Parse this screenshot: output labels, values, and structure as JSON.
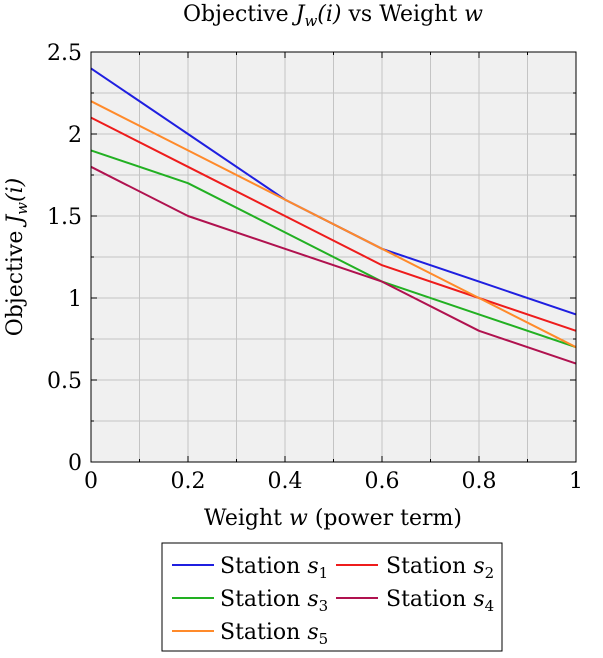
{
  "chart_data": {
    "type": "line",
    "title": {
      "prefix": "Objective ",
      "sym": "J",
      "sub": "w",
      "arg": "(i)",
      "suffix": " vs Weight ",
      "var": "w"
    },
    "xlabel": {
      "prefix": "Weight ",
      "var": "w",
      "suffix": " (power term)"
    },
    "ylabel": {
      "prefix": "Objective ",
      "sym": "J",
      "sub": "w",
      "arg": "(i)"
    },
    "xlim": [
      0,
      1
    ],
    "ylim": [
      0,
      2.5
    ],
    "xticks": [
      0,
      0.2,
      0.4,
      0.6,
      0.8,
      1
    ],
    "xtick_labels": [
      "0",
      "0.2",
      "0.4",
      "0.6",
      "0.8",
      "1"
    ],
    "yticks": [
      0,
      0.5,
      1,
      1.5,
      2,
      2.5
    ],
    "ytick_labels": [
      "0",
      "0.5",
      "1",
      "1.5",
      "2",
      "2.5"
    ],
    "grid": true,
    "legend_position": "bottom-center",
    "x": [
      0,
      0.2,
      0.4,
      0.6,
      0.8,
      1
    ],
    "series": [
      {
        "name": "Station s1",
        "label": "Station ",
        "sym": "s",
        "sub": "1",
        "color": "#1f1fe0",
        "values": [
          2.4,
          2.0,
          1.6,
          1.3,
          1.1,
          0.9
        ]
      },
      {
        "name": "Station s2",
        "label": "Station ",
        "sym": "s",
        "sub": "2",
        "color": "#ee1c1c",
        "values": [
          2.1,
          1.8,
          1.5,
          1.2,
          1.0,
          0.8
        ]
      },
      {
        "name": "Station s3",
        "label": "Station ",
        "sym": "s",
        "sub": "3",
        "color": "#22b022",
        "values": [
          1.9,
          1.7,
          1.4,
          1.1,
          0.9,
          0.7
        ]
      },
      {
        "name": "Station s4",
        "label": "Station ",
        "sym": "s",
        "sub": "4",
        "color": "#b0124f",
        "values": [
          1.8,
          1.5,
          1.3,
          1.1,
          0.8,
          0.6
        ]
      },
      {
        "name": "Station s5",
        "label": "Station ",
        "sym": "s",
        "sub": "5",
        "color": "#ff8a2a",
        "values": [
          2.2,
          1.9,
          1.6,
          1.3,
          1.0,
          0.7
        ]
      }
    ]
  }
}
